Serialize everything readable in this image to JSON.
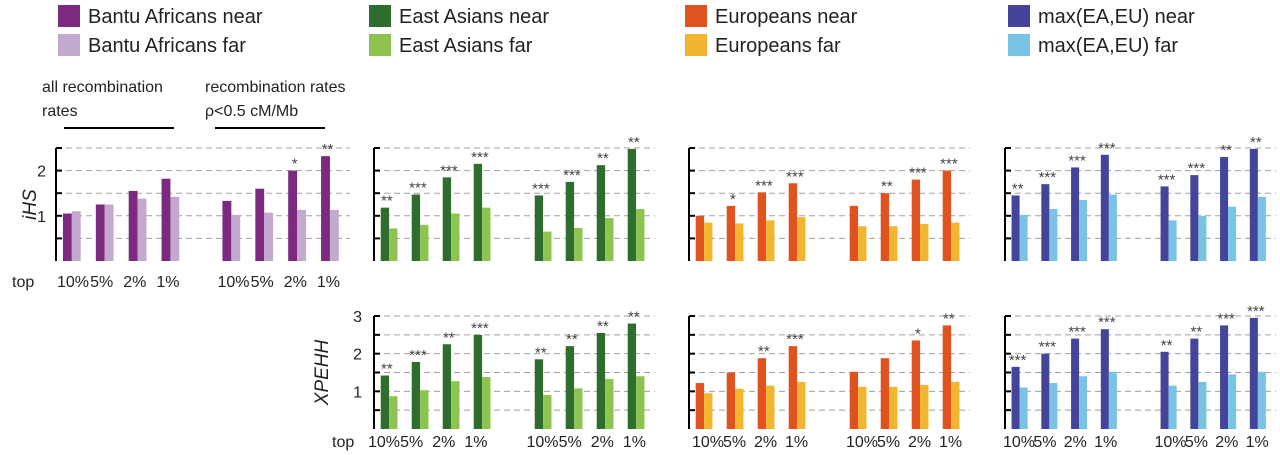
{
  "legend": [
    {
      "label": "Bantu Africans near",
      "color": "#7b2a80"
    },
    {
      "label": "Bantu Africans far",
      "color": "#c4a9cf"
    },
    {
      "label": "East Asians near",
      "color": "#2f6d2f"
    },
    {
      "label": "East Asians far",
      "color": "#8dc44f"
    },
    {
      "label": "Europeans near",
      "color": "#e0531e"
    },
    {
      "label": "Europeans far",
      "color": "#f2b531"
    },
    {
      "label": "max(EA,EU) near",
      "color": "#43449a"
    },
    {
      "label": "max(EA,EU) far",
      "color": "#79c3e4"
    }
  ],
  "group_headers": {
    "all": "all recombination rates",
    "low_line1": "recombination rates",
    "low_line2": "ρ<0.5 cM/Mb"
  },
  "top_label": "top",
  "chart_data": [
    {
      "type": "bar",
      "name": "iHS Bantu Africans",
      "ylabel": "iHS",
      "ylim": [
        0,
        2.5
      ],
      "yticks": [
        1,
        2
      ],
      "near_color": "#7b2a80",
      "far_color": "#c4a9cf",
      "categories": [
        "10%",
        "5%",
        "2%",
        "1%",
        "10%",
        "5%",
        "2%",
        "1%"
      ],
      "series": [
        {
          "values": [
            1.05,
            1.25,
            1.55,
            1.82,
            1.33,
            1.6,
            2.0,
            2.32
          ]
        },
        {
          "values": [
            1.1,
            1.25,
            1.38,
            1.42,
            1.02,
            1.07,
            1.13,
            1.13
          ]
        }
      ],
      "annotations": [
        "",
        "",
        "",
        "",
        "",
        "",
        "*",
        "**"
      ]
    },
    {
      "type": "bar",
      "name": "iHS East Asians",
      "ylabel": "",
      "ylim": [
        0,
        2.5
      ],
      "yticks": [
        1,
        2
      ],
      "near_color": "#2f6d2f",
      "far_color": "#8dc44f",
      "categories": [
        "10%",
        "5%",
        "2%",
        "1%",
        "10%",
        "5%",
        "2%",
        "1%"
      ],
      "series": [
        {
          "values": [
            1.18,
            1.47,
            1.85,
            2.15,
            1.45,
            1.75,
            2.12,
            2.48
          ]
        },
        {
          "values": [
            0.72,
            0.8,
            1.05,
            1.18,
            0.65,
            0.73,
            0.95,
            1.15
          ]
        }
      ],
      "annotations": [
        "**",
        "***",
        "***",
        "***",
        "***",
        "***",
        "**",
        "**"
      ]
    },
    {
      "type": "bar",
      "name": "iHS Europeans",
      "ylabel": "",
      "ylim": [
        0,
        2.5
      ],
      "yticks": [
        1,
        2
      ],
      "near_color": "#e0531e",
      "far_color": "#f2b531",
      "categories": [
        "10%",
        "5%",
        "2%",
        "1%",
        "10%",
        "5%",
        "2%",
        "1%"
      ],
      "series": [
        {
          "values": [
            1.0,
            1.22,
            1.52,
            1.72,
            1.22,
            1.5,
            1.8,
            2.0
          ]
        },
        {
          "values": [
            0.85,
            0.83,
            0.9,
            0.97,
            0.77,
            0.77,
            0.82,
            0.85
          ]
        }
      ],
      "annotations": [
        "",
        "*",
        "***",
        "***",
        "",
        "**",
        "***",
        "***"
      ]
    },
    {
      "type": "bar",
      "name": "iHS max(EA,EU)",
      "ylabel": "",
      "ylim": [
        0,
        2.5
      ],
      "yticks": [
        1,
        2
      ],
      "near_color": "#43449a",
      "far_color": "#79c3e4",
      "categories": [
        "10%",
        "5%",
        "2%",
        "1%",
        "10%",
        "5%",
        "2%",
        "1%"
      ],
      "series": [
        {
          "values": [
            1.45,
            1.7,
            2.07,
            2.35,
            1.65,
            1.9,
            2.3,
            2.48
          ]
        },
        {
          "values": [
            1.02,
            1.15,
            1.35,
            1.47,
            0.9,
            1.0,
            1.2,
            1.42
          ]
        }
      ],
      "annotations": [
        "**",
        "***",
        "***",
        "***",
        "***",
        "***",
        "**",
        "**"
      ]
    },
    {
      "type": "bar",
      "name": "XPEHH East Asians",
      "ylabel": "XPEHH",
      "ylim": [
        0,
        3
      ],
      "yticks": [
        1,
        2,
        3
      ],
      "near_color": "#2f6d2f",
      "far_color": "#8dc44f",
      "categories": [
        "10%",
        "5%",
        "2%",
        "1%",
        "10%",
        "5%",
        "2%",
        "1%"
      ],
      "series": [
        {
          "values": [
            1.42,
            1.78,
            2.25,
            2.5,
            1.85,
            2.2,
            2.55,
            2.8
          ]
        },
        {
          "values": [
            0.87,
            1.03,
            1.27,
            1.38,
            0.9,
            1.08,
            1.33,
            1.4
          ]
        }
      ],
      "annotations": [
        "**",
        "***",
        "**",
        "***",
        "**",
        "**",
        "**",
        "**"
      ]
    },
    {
      "type": "bar",
      "name": "XPEHH Europeans",
      "ylabel": "",
      "ylim": [
        0,
        3
      ],
      "yticks": [
        1,
        2,
        3
      ],
      "near_color": "#e0531e",
      "far_color": "#f2b531",
      "categories": [
        "10%",
        "5%",
        "2%",
        "1%",
        "10%",
        "5%",
        "2%",
        "1%"
      ],
      "series": [
        {
          "values": [
            1.22,
            1.5,
            1.88,
            2.2,
            1.52,
            1.88,
            2.35,
            2.75
          ]
        },
        {
          "values": [
            0.95,
            1.07,
            1.15,
            1.25,
            1.12,
            1.12,
            1.17,
            1.25
          ]
        }
      ],
      "annotations": [
        "",
        "",
        "**",
        "***",
        "",
        "",
        "*",
        "**"
      ]
    },
    {
      "type": "bar",
      "name": "XPEHH max(EA,EU)",
      "ylabel": "",
      "ylim": [
        0,
        3
      ],
      "yticks": [
        1,
        2,
        3
      ],
      "near_color": "#43449a",
      "far_color": "#79c3e4",
      "categories": [
        "10%",
        "5%",
        "2%",
        "1%",
        "10%",
        "5%",
        "2%",
        "1%"
      ],
      "series": [
        {
          "values": [
            1.65,
            2.0,
            2.4,
            2.65,
            2.05,
            2.4,
            2.75,
            2.95
          ]
        },
        {
          "values": [
            1.1,
            1.22,
            1.4,
            1.52,
            1.15,
            1.25,
            1.45,
            1.52
          ]
        }
      ],
      "annotations": [
        "***",
        "***",
        "***",
        "***",
        "**",
        "**",
        "***",
        "***"
      ]
    }
  ]
}
